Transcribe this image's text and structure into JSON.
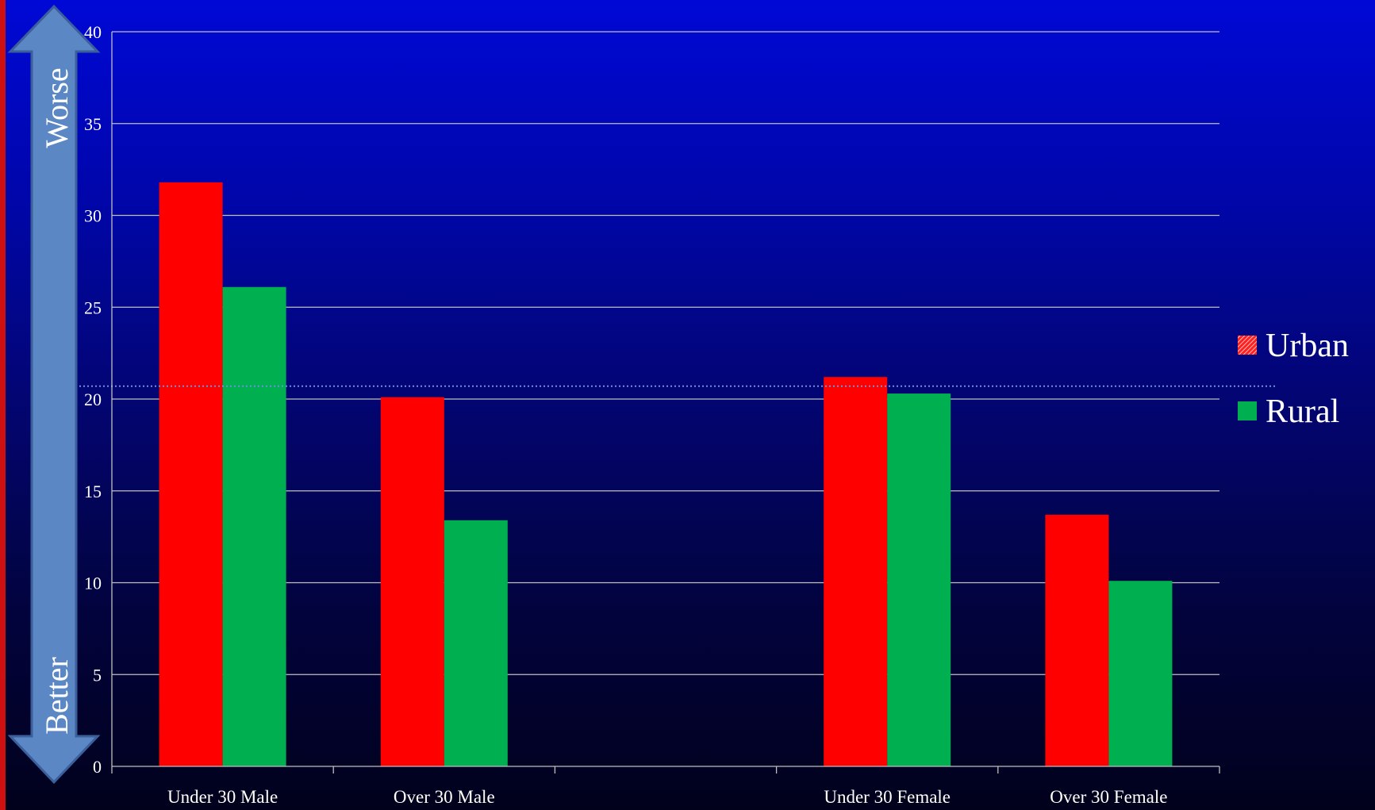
{
  "chart_data": {
    "type": "bar",
    "categories": [
      "Under 30 Male",
      "Over 30      Male",
      "",
      "Under 30 Female",
      "Over 30   Female"
    ],
    "series": [
      {
        "name": "Urban",
        "values": [
          31.8,
          20.1,
          null,
          21.2,
          13.7
        ],
        "color": "#ff0000"
      },
      {
        "name": "Rural",
        "values": [
          26.1,
          13.4,
          null,
          20.3,
          10.1
        ],
        "color": "#00b050"
      }
    ],
    "ylim": [
      0,
      40
    ],
    "yticks": [
      "0",
      "5",
      "10",
      "15",
      "20",
      "25",
      "30",
      "35",
      "40"
    ],
    "reference_line": 20.7,
    "grid": true,
    "legend_position": "right",
    "legend": [
      {
        "label": "Urban",
        "icon": "hatched-red-swatch"
      },
      {
        "label": "Rural",
        "icon": "solid-green-swatch"
      }
    ],
    "arrow": {
      "top_label": "Worse",
      "bottom_label": "Better",
      "icon": "double-headed-arrow-icon"
    }
  },
  "colors": {
    "grid": "#bfbfbf",
    "reference_line": "#6f8fe0",
    "arrow_fill": "#5b87c5",
    "arrow_stroke": "#3a5f9a",
    "text": "#ffffff"
  }
}
